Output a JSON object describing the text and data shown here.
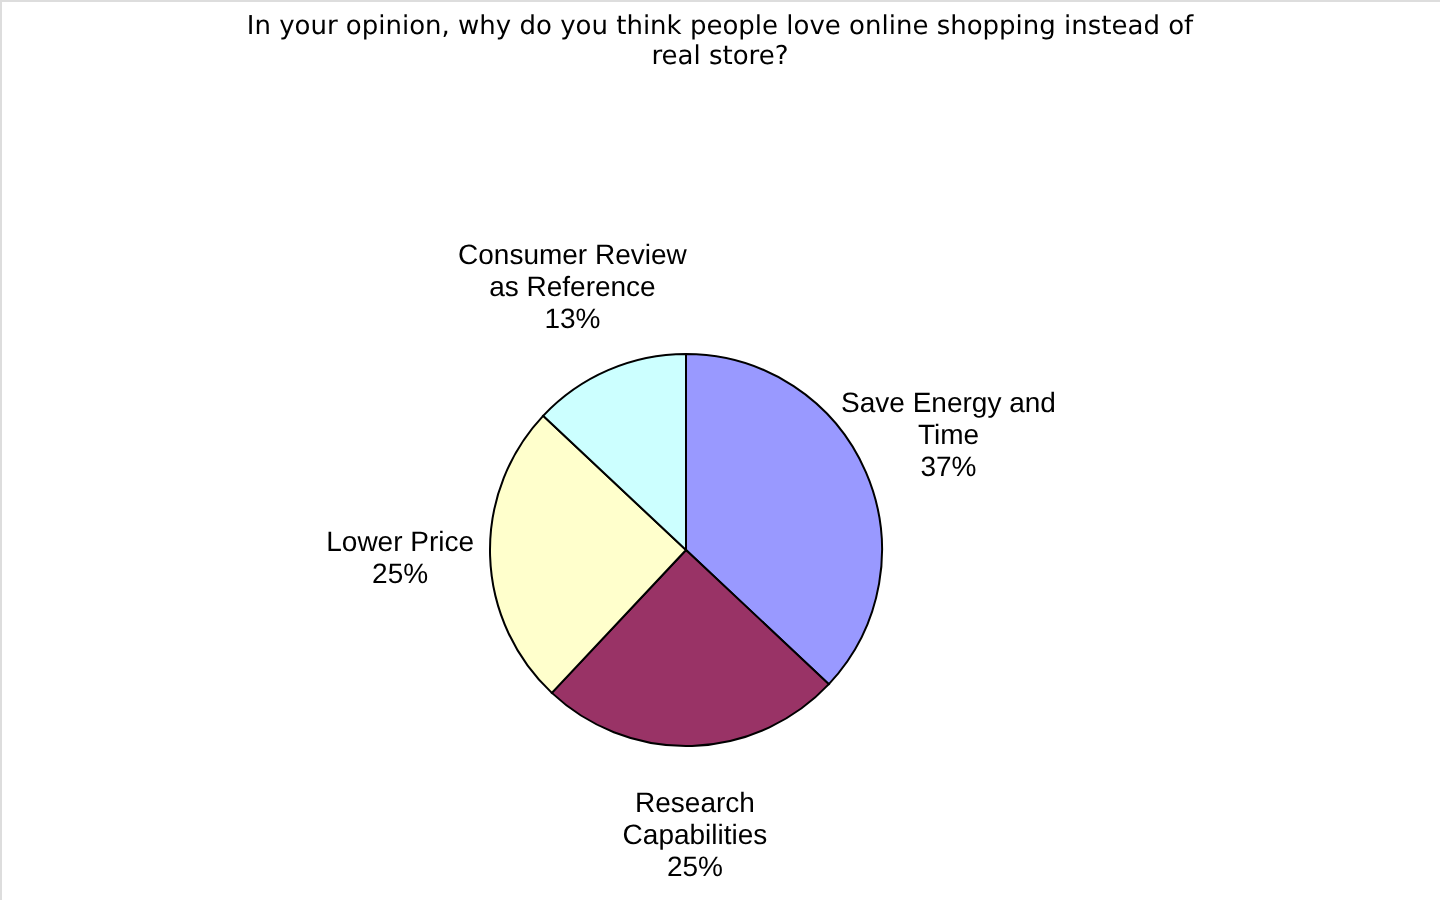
{
  "chart_data": {
    "type": "pie",
    "title": "In your opinion, why do you think people love online shopping instead of real store?",
    "categories": [
      "Save Energy and Time",
      "Research Capabilities",
      "Lower Price",
      "Consumer Review as Reference"
    ],
    "values": [
      37,
      25,
      25,
      13
    ],
    "colors": [
      "#9999ff",
      "#993366",
      "#ffffcc",
      "#ccffff"
    ],
    "data_labels": true,
    "value_labels": [
      "37%",
      "25%",
      "25%",
      "13%"
    ],
    "legend": false
  }
}
